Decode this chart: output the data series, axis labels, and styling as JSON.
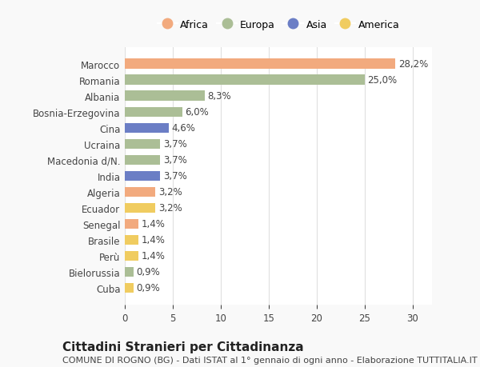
{
  "countries": [
    "Marocco",
    "Romania",
    "Albania",
    "Bosnia-Erzegovina",
    "Cina",
    "Ucraina",
    "Macedonia d/N.",
    "India",
    "Algeria",
    "Ecuador",
    "Senegal",
    "Brasile",
    "Perù",
    "Bielorussia",
    "Cuba"
  ],
  "values": [
    28.2,
    25.0,
    8.3,
    6.0,
    4.6,
    3.7,
    3.7,
    3.7,
    3.2,
    3.2,
    1.4,
    1.4,
    1.4,
    0.9,
    0.9
  ],
  "labels": [
    "28,2%",
    "25,0%",
    "8,3%",
    "6,0%",
    "4,6%",
    "3,7%",
    "3,7%",
    "3,7%",
    "3,2%",
    "3,2%",
    "1,4%",
    "1,4%",
    "1,4%",
    "0,9%",
    "0,9%"
  ],
  "continents": [
    "Africa",
    "Europa",
    "Europa",
    "Europa",
    "Asia",
    "Europa",
    "Europa",
    "Asia",
    "Africa",
    "America",
    "Africa",
    "America",
    "America",
    "Europa",
    "America"
  ],
  "continent_colors": {
    "Africa": "#F2AA7E",
    "Europa": "#ABBE96",
    "Asia": "#6B7EC5",
    "America": "#F0CC60"
  },
  "legend_order": [
    "Africa",
    "Europa",
    "Asia",
    "America"
  ],
  "title": "Cittadini Stranieri per Cittadinanza",
  "subtitle": "COMUNE DI ROGNO (BG) - Dati ISTAT al 1° gennaio di ogni anno - Elaborazione TUTTITALIA.IT",
  "xlim": [
    0,
    32
  ],
  "xticks": [
    0,
    5,
    10,
    15,
    20,
    25,
    30
  ],
  "bg_color": "#f9f9f9",
  "plot_bg_color": "#ffffff",
  "grid_color": "#e0e0e0",
  "text_color": "#444444",
  "label_fontsize": 8.5,
  "tick_fontsize": 8.5,
  "title_fontsize": 11,
  "subtitle_fontsize": 8
}
